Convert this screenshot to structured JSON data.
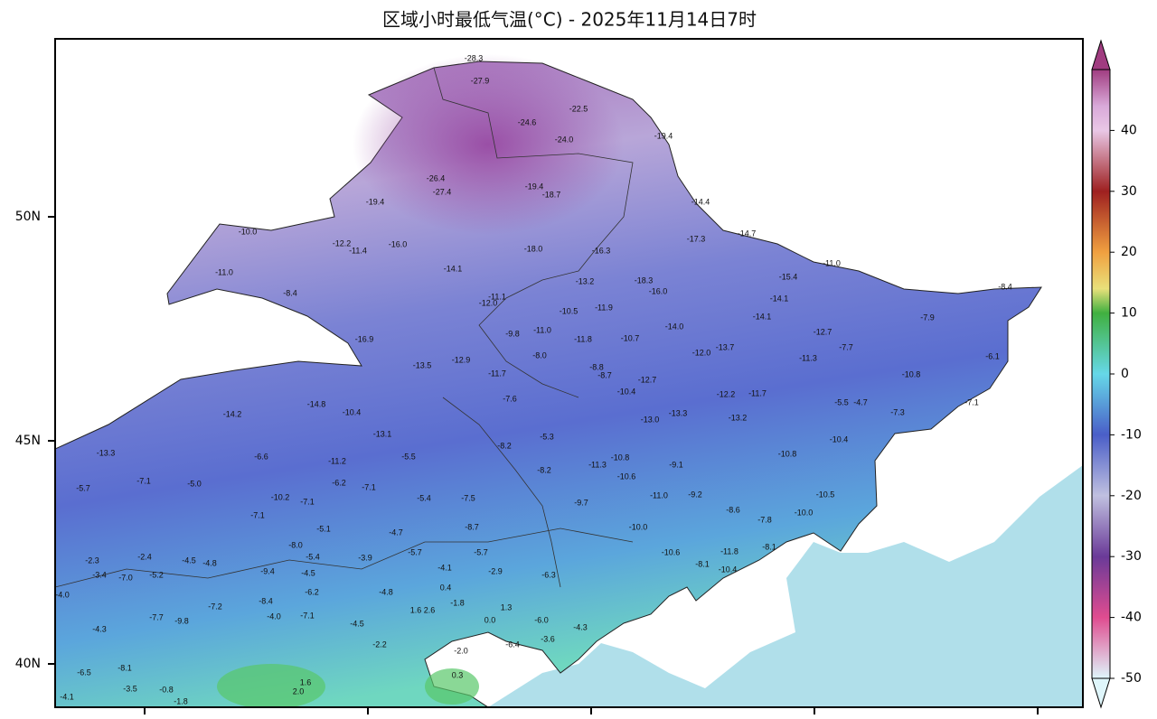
{
  "title": "区域小时最低气温(°C) - 2025年11月14日7时",
  "lat_labels": [
    "50N",
    "45N",
    "40N"
  ],
  "colorbar": {
    "range": [
      -50,
      50
    ],
    "ticks": [
      40,
      30,
      20,
      10,
      0,
      -10,
      -20,
      -30,
      -40,
      -50
    ]
  },
  "stations": {
    "labels": [
      "-28.3",
      "-27.9",
      "-22.5",
      "-24.6",
      "-24.0",
      "-19.4",
      "-26.4",
      "-27.4",
      "-19.4",
      "-18.7",
      "-19.4",
      "-14.4",
      "-10.0",
      "-12.2",
      "-11.4",
      "-16.0",
      "-18.0",
      "-16.3",
      "-17.3",
      "-14.7",
      "-11.0",
      "-11.0",
      "-14.1",
      "-15.4",
      "-8.4",
      "-8.4",
      "-18.3",
      "-13.2",
      "-16.0",
      "-14.1",
      "-12.0",
      "-11.1",
      "-10.5",
      "-11.9",
      "-14.1",
      "-16.9",
      "-9.8",
      "-11.0",
      "-11.8",
      "-10.7",
      "-14.0",
      "-12.7",
      "-7.9",
      "-13.5",
      "-12.9",
      "-8.0",
      "-13.7",
      "-12.0",
      "-7.7",
      "-6.1",
      "-11.7",
      "-8.8",
      "-8.7",
      "-12.7",
      "-11.3",
      "-10.8",
      "-14.8",
      "-10.4",
      "-7.6",
      "-10.4",
      "-12.2",
      "-11.7",
      "-5.5",
      "-4.7",
      "-7.1",
      "-14.2",
      "-7.3",
      "-13.0",
      "-13.3",
      "-13.2",
      "-5.3",
      "-13.1",
      "-13.3",
      "-6.6",
      "-11.2",
      "-5.5",
      "-8.2",
      "-11.3",
      "-10.8",
      "-9.1",
      "-10.4",
      "-10.8",
      "-5.7",
      "-7.1",
      "-5.0",
      "-10.2",
      "-7.1",
      "-6.2",
      "-7.1",
      "-5.4",
      "-7.5",
      "-8.2",
      "-10.6",
      "-11.0",
      "-9.2",
      "-10.5",
      "-7.1",
      "-5.1",
      "-4.7",
      "-8.7",
      "-9.7",
      "-10.0",
      "-8.6",
      "-7.8",
      "-10.0",
      "-2.4",
      "-4.5",
      "-4.8",
      "-8.0",
      "-5.4",
      "-3.9",
      "-5.7",
      "-5.7",
      "-10.6",
      "-11.8",
      "-8.1",
      "-2.3",
      "-3.4",
      "-7.0",
      "-5.2",
      "-9.4",
      "-4.5",
      "-4.1",
      "-2.9",
      "-6.3",
      "-8.1",
      "-10.4",
      "-4.0",
      "-7.2",
      "-8.4",
      "-6.2",
      "-4.8",
      "0.4",
      "-1.8",
      "1.3",
      "-6.0",
      "-4.3",
      "-4.3",
      "-7.7",
      "-9.8",
      "-4.0",
      "-7.1",
      "-4.5",
      "1.6",
      "2.6",
      "0.0",
      "-2.2",
      "-6.4",
      "-3.6",
      "-2.0",
      "0.3",
      "1.6",
      "2.0",
      "-4.1",
      "-6.5",
      "-8.1",
      "-3.5",
      "-0.8",
      "-1.8"
    ]
  }
}
